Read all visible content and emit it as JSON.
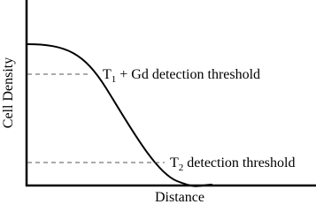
{
  "axes": {
    "y_label": "Cell Density",
    "x_label": "Distance"
  },
  "thresholds": [
    {
      "symbol": "T",
      "subscript": "1",
      "text": "+ Gd detection threshold"
    },
    {
      "symbol": "T",
      "subscript": "2",
      "text": "detection threshold"
    }
  ]
}
